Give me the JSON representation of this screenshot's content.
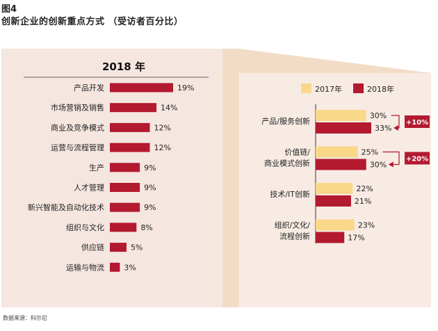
{
  "figure_label": "图4",
  "title": "创新企业的创新重点方式 （受访者百分比）",
  "source": "数据来源：科尔尼",
  "colors": {
    "panel_left": "#f5e6e0",
    "panel_right": "#f7ebe4",
    "funnel": "#f3dcc6",
    "y2017": "#f9d88a",
    "y2018": "#b3192f",
    "axis": "#555555"
  },
  "chart_data": [
    {
      "type": "bar",
      "title": "2018 年",
      "orientation": "horizontal",
      "categories": [
        "产品开发",
        "市场营销及销售",
        "商业及竞争模式",
        "运营与流程管理",
        "生产",
        "人才管理",
        "新兴智能及自动化技术",
        "组织与文化",
        "供应链",
        "运输与物流"
      ],
      "values": [
        19,
        14,
        12,
        12,
        9,
        9,
        9,
        8,
        5,
        3
      ],
      "value_labels": [
        "19%",
        "14%",
        "12%",
        "12%",
        "9%",
        "9%",
        "9%",
        "8%",
        "5%",
        "3%"
      ],
      "unit": "%",
      "legend": "none",
      "grid": false
    },
    {
      "type": "bar",
      "orientation": "horizontal",
      "categories": [
        [
          "产品/服务创新"
        ],
        [
          "价值链/",
          "商业模式创新"
        ],
        [
          "技术/IT创新"
        ],
        [
          "组织/文化/",
          "流程创新"
        ]
      ],
      "series": [
        {
          "name": "2017年",
          "values": [
            30,
            25,
            22,
            23
          ],
          "labels": [
            "30%",
            "25%",
            "22%",
            "23%"
          ]
        },
        {
          "name": "2018年",
          "values": [
            33,
            30,
            21,
            17
          ],
          "labels": [
            "33%",
            "30%",
            "21%",
            "17%"
          ]
        }
      ],
      "annotations": [
        {
          "category_index": 0,
          "text": "+10%"
        },
        {
          "category_index": 1,
          "text": "+20%"
        }
      ],
      "unit": "%",
      "legend": "top",
      "grid": false
    }
  ]
}
